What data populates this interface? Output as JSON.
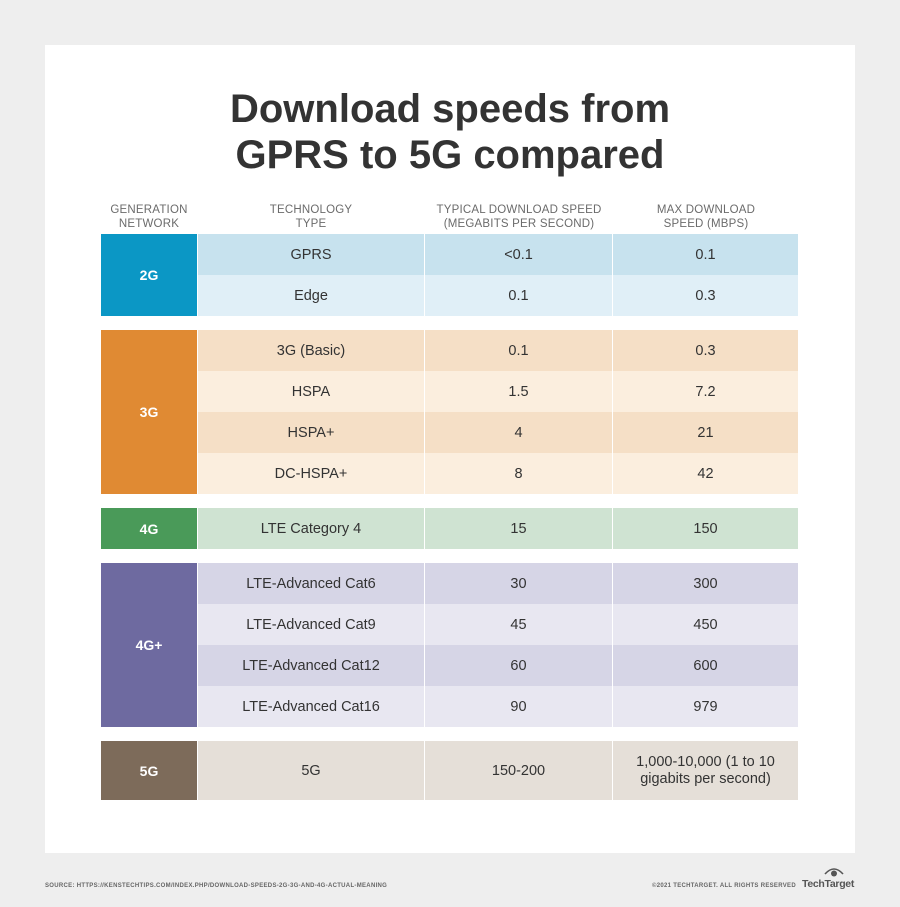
{
  "title_line1": "Download speeds from",
  "title_line2": "GPRS to 5G compared",
  "headers": {
    "generation": "GENERATION\nNETWORK",
    "technology": "TECHNOLOGY\nTYPE",
    "typical": "TYPICAL DOWNLOAD SPEED\n(MEGABITS PER SECOND)",
    "max": "MAX DOWNLOAD\nSPEED (MBPS)"
  },
  "groups": [
    {
      "name": "2G",
      "color": "#0b97c5",
      "row_colors": [
        "#c7e2ee",
        "#e0eff7"
      ],
      "rows": [
        {
          "tech": "GPRS",
          "typical": "<0.1",
          "max": "0.1"
        },
        {
          "tech": "Edge",
          "typical": "0.1",
          "max": "0.3"
        }
      ]
    },
    {
      "name": "3G",
      "color": "#e08a33",
      "row_colors": [
        "#f5dfc6",
        "#fbeede"
      ],
      "rows": [
        {
          "tech": "3G (Basic)",
          "typical": "0.1",
          "max": "0.3"
        },
        {
          "tech": "HSPA",
          "typical": "1.5",
          "max": "7.2"
        },
        {
          "tech": "HSPA+",
          "typical": "4",
          "max": "21"
        },
        {
          "tech": "DC-HSPA+",
          "typical": "8",
          "max": "42"
        }
      ]
    },
    {
      "name": "4G",
      "color": "#4a9a59",
      "row_colors": [
        "#cfe3d2"
      ],
      "rows": [
        {
          "tech": "LTE Category 4",
          "typical": "15",
          "max": "150"
        }
      ]
    },
    {
      "name": "4G+",
      "color": "#6e6aa0",
      "row_colors": [
        "#d6d5e6",
        "#e8e7f1"
      ],
      "rows": [
        {
          "tech": "LTE-Advanced Cat6",
          "typical": "30",
          "max": "300"
        },
        {
          "tech": "LTE-Advanced Cat9",
          "typical": "45",
          "max": "450"
        },
        {
          "tech": "LTE-Advanced Cat12",
          "typical": "60",
          "max": "600"
        },
        {
          "tech": "LTE-Advanced Cat16",
          "typical": "90",
          "max": "979"
        }
      ]
    },
    {
      "name": "5G",
      "color": "#7d6b5a",
      "row_colors": [
        "#e5dfd8"
      ],
      "tall": true,
      "rows": [
        {
          "tech": "5G",
          "typical": "150-200",
          "max": "1,000-10,000 (1 to 10 gigabits per second)"
        }
      ]
    }
  ],
  "footer": {
    "source": "SOURCE: HTTPS://KENSTECHTIPS.COM/INDEX.PHP/DOWNLOAD-SPEEDS-2G-3G-AND-4G-ACTUAL-MEANING",
    "copyright": "©2021 TECHTARGET. ALL RIGHTS RESERVED",
    "logo": "TechTarget",
    "logo_icon": "eye-icon"
  }
}
